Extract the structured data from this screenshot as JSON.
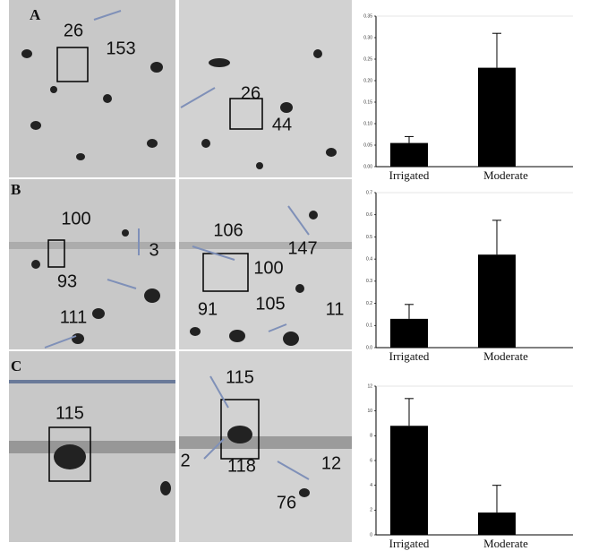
{
  "panels": [
    {
      "label": "A",
      "left": [
        "26",
        "153"
      ],
      "right": [
        "26",
        "44"
      ]
    },
    {
      "label": "B",
      "left": [
        "100",
        "3",
        "93",
        "111"
      ],
      "right": [
        "106",
        "147",
        "100",
        "91",
        "105",
        "11"
      ]
    },
    {
      "label": "C",
      "left": [
        "115"
      ],
      "right": [
        "115",
        "2",
        "118",
        "12",
        "76"
      ]
    }
  ],
  "chart_data": [
    {
      "type": "bar",
      "categories": [
        "Irrigated",
        "Moderate"
      ],
      "values": [
        0.055,
        0.23
      ],
      "errors": [
        0.015,
        0.08
      ],
      "color": "#000000",
      "ylim": [
        0,
        0.35
      ],
      "yticks": [
        {
          "value": 0,
          "label": "0.00"
        },
        {
          "value": 0.05,
          "label": "0.05"
        },
        {
          "value": 0.1,
          "label": "0.10"
        },
        {
          "value": 0.15,
          "label": "0.15"
        },
        {
          "value": 0.2,
          "label": "0.20"
        },
        {
          "value": 0.25,
          "label": "0.25"
        },
        {
          "value": 0.3,
          "label": "0.30"
        },
        {
          "value": 0.35,
          "label": "0.35"
        }
      ]
    },
    {
      "type": "bar",
      "categories": [
        "Irrigated",
        "Moderate"
      ],
      "values": [
        0.13,
        0.42
      ],
      "errors": [
        0.065,
        0.155
      ],
      "color": "#000000",
      "ylim": [
        0,
        0.7
      ],
      "yticks": [
        {
          "value": 0,
          "label": "0.0"
        },
        0.1,
        0.2,
        0.3,
        0.4,
        0.5,
        0.6,
        0.7
      ]
    },
    {
      "type": "bar",
      "categories": [
        "Irrigated",
        "Moderate"
      ],
      "values": [
        8.8,
        1.8
      ],
      "errors": [
        2.2,
        2.2
      ],
      "color": "#000000",
      "ylim": [
        0,
        12
      ],
      "yticks": [
        0,
        2,
        4,
        6,
        8,
        10,
        12
      ]
    }
  ]
}
